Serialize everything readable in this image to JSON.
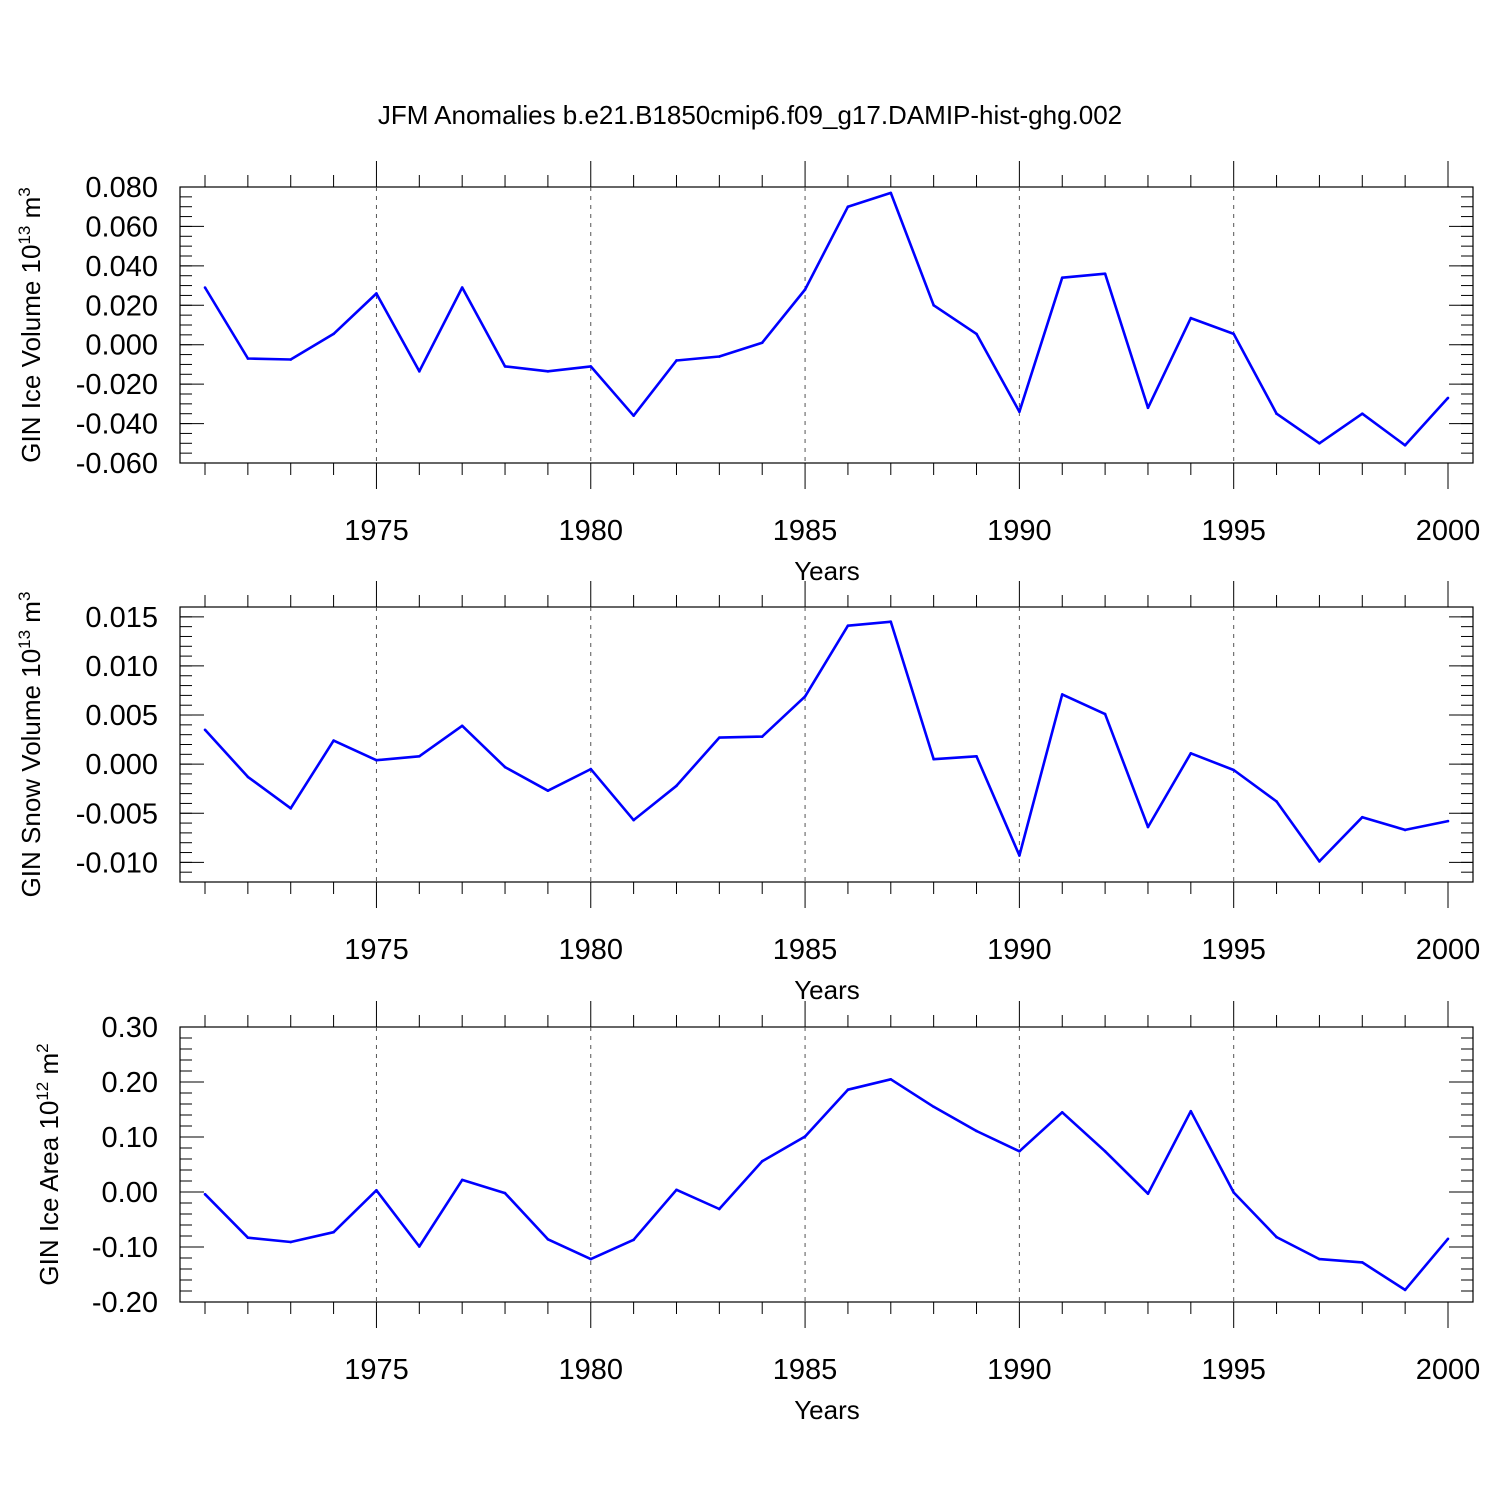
{
  "title": "JFM Anomalies b.e21.B1850cmip6.f09_g17.DAMIP-hist-ghg.002",
  "colors": {
    "line": "#0000ff",
    "axis": "#000000",
    "grid": "#555555"
  },
  "chart_data": [
    {
      "type": "line",
      "ylabel_prefix": "GIN Ice Volume 10",
      "ylabel_exp": "13",
      "ylabel_unit": " m",
      "ylabel_unit_exp": "3",
      "xlabel": "Years",
      "xlim": [
        1971,
        2000
      ],
      "ylim": [
        -0.06,
        0.08
      ],
      "yticks": [
        0.08,
        0.06,
        0.04,
        0.02,
        0.0,
        -0.02,
        -0.04,
        -0.06
      ],
      "yticklabels": [
        "0.080",
        "0.060",
        "0.040",
        "0.020",
        "0.000",
        "-0.020",
        "-0.040",
        "-0.060"
      ],
      "yminor": 0.005,
      "xticks": [
        1975,
        1980,
        1985,
        1990,
        1995,
        2000
      ],
      "xticklabels": [
        "1975",
        "1980",
        "1985",
        "1990",
        "1995",
        "2000"
      ],
      "x": [
        1971,
        1972,
        1973,
        1974,
        1975,
        1976,
        1977,
        1978,
        1979,
        1980,
        1981,
        1982,
        1983,
        1984,
        1985,
        1986,
        1987,
        1988,
        1989,
        1990,
        1991,
        1992,
        1993,
        1994,
        1995,
        1996,
        1997,
        1998,
        1999,
        2000
      ],
      "values": [
        0.029,
        -0.007,
        -0.0075,
        0.0055,
        0.026,
        -0.0135,
        0.029,
        -0.011,
        -0.0135,
        -0.011,
        -0.036,
        -0.008,
        -0.006,
        0.001,
        0.028,
        0.07,
        0.077,
        0.02,
        0.0055,
        -0.034,
        0.034,
        0.036,
        -0.032,
        0.0135,
        0.0055,
        -0.035,
        -0.05,
        -0.035,
        -0.051,
        -0.027
      ]
    },
    {
      "type": "line",
      "ylabel_prefix": "GIN Snow Volume 10",
      "ylabel_exp": "13",
      "ylabel_unit": " m",
      "ylabel_unit_exp": "3",
      "xlabel": "Years",
      "xlim": [
        1971,
        2000
      ],
      "ylim": [
        -0.012,
        0.016
      ],
      "yticks": [
        0.015,
        0.01,
        0.005,
        0.0,
        -0.005,
        -0.01
      ],
      "yticklabels": [
        "0.015",
        "0.010",
        "0.005",
        "0.000",
        "-0.005",
        "-0.010"
      ],
      "yminor": 0.001,
      "xticks": [
        1975,
        1980,
        1985,
        1990,
        1995,
        2000
      ],
      "xticklabels": [
        "1975",
        "1980",
        "1985",
        "1990",
        "1995",
        "2000"
      ],
      "x": [
        1971,
        1972,
        1973,
        1974,
        1975,
        1976,
        1977,
        1978,
        1979,
        1980,
        1981,
        1982,
        1983,
        1984,
        1985,
        1986,
        1987,
        1988,
        1989,
        1990,
        1991,
        1992,
        1993,
        1994,
        1995,
        1996,
        1997,
        1998,
        1999,
        2000
      ],
      "values": [
        0.0035,
        -0.0013,
        -0.0045,
        0.0024,
        0.0004,
        0.0008,
        0.0039,
        -0.0003,
        -0.0027,
        -0.0005,
        -0.0057,
        -0.0022,
        0.0027,
        0.0028,
        0.0069,
        0.0141,
        0.0145,
        0.0005,
        0.0008,
        -0.0093,
        0.0071,
        0.0051,
        -0.0064,
        0.0011,
        -0.0006,
        -0.0038,
        -0.0099,
        -0.0054,
        -0.0067,
        -0.0058
      ]
    },
    {
      "type": "line",
      "ylabel_prefix": "GIN Ice Area 10",
      "ylabel_exp": "12",
      "ylabel_unit": " m",
      "ylabel_unit_exp": "2",
      "xlabel": "Years",
      "xlim": [
        1971,
        2000
      ],
      "ylim": [
        -0.2,
        0.3
      ],
      "yticks": [
        0.3,
        0.2,
        0.1,
        0.0,
        -0.1,
        -0.2
      ],
      "yticklabels": [
        "0.30",
        "0.20",
        "0.10",
        "0.00",
        "-0.10",
        "-0.20"
      ],
      "yminor": 0.02,
      "xticks": [
        1975,
        1980,
        1985,
        1990,
        1995,
        2000
      ],
      "xticklabels": [
        "1975",
        "1980",
        "1985",
        "1990",
        "1995",
        "2000"
      ],
      "x": [
        1971,
        1972,
        1973,
        1974,
        1975,
        1976,
        1977,
        1978,
        1979,
        1980,
        1981,
        1982,
        1983,
        1984,
        1985,
        1986,
        1987,
        1988,
        1989,
        1990,
        1991,
        1992,
        1993,
        1994,
        1995,
        1996,
        1997,
        1998,
        1999,
        2000
      ],
      "values": [
        -0.004,
        -0.083,
        -0.091,
        -0.073,
        0.003,
        -0.099,
        0.022,
        -0.002,
        -0.086,
        -0.122,
        -0.087,
        0.004,
        -0.031,
        0.056,
        0.101,
        0.186,
        0.205,
        0.155,
        0.111,
        0.074,
        0.145,
        0.074,
        -0.003,
        0.147,
        -0.001,
        -0.082,
        -0.122,
        -0.128,
        -0.178,
        -0.085
      ]
    }
  ]
}
